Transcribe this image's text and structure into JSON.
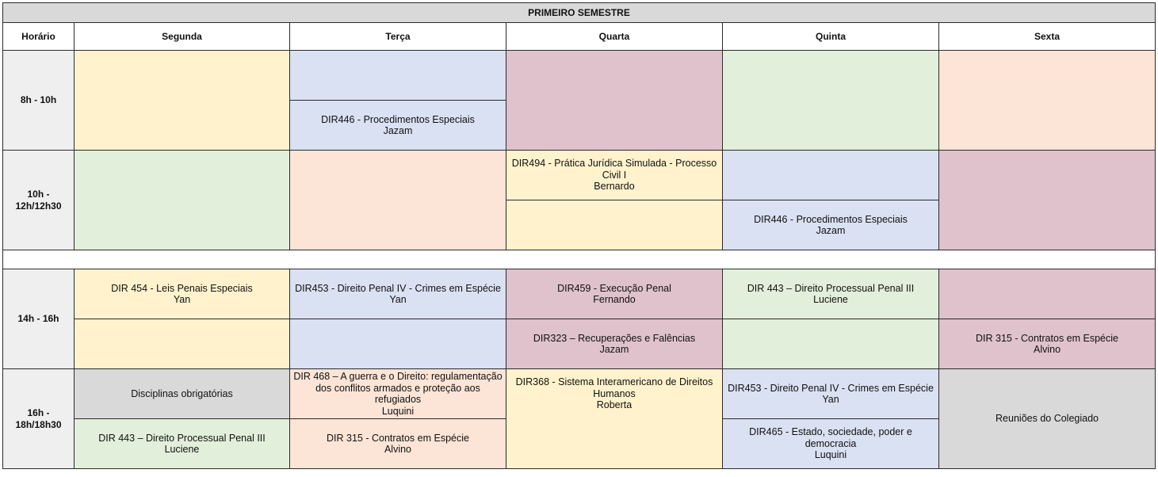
{
  "title": "PRIMEIRO SEMESTRE",
  "headers": [
    "Horário",
    "Segunda",
    "Terça",
    "Quarta",
    "Quinta",
    "Sexta"
  ],
  "times": [
    "8h - 10h",
    "10h -\n12h/12h30",
    "14h - 16h",
    "16h -\n18h/18h30"
  ],
  "cells": {
    "tue_8_b": [
      "DIR446 - Procedimentos Especiais",
      "Jazam"
    ],
    "wed_10": [
      "DIR494 - Prática Jurídica Simulada - Processo Civil I",
      "Bernardo"
    ],
    "thu_10_b": [
      "DIR446 - Procedimentos Especiais",
      "Jazam"
    ],
    "mon_14_a": [
      "DIR 454 - Leis Penais Especiais",
      "Yan"
    ],
    "tue_14_a": [
      "DIR453 - Direito Penal IV - Crimes em Espécie",
      "Yan"
    ],
    "wed_14_a": [
      "DIR459 - Execução Penal",
      "Fernando"
    ],
    "thu_14_a": [
      "DIR 443 – Direito Processual Penal III",
      "Luciene"
    ],
    "wed_14_b": [
      "DIR323 – Recuperações e Falências",
      "Jazam"
    ],
    "fri_14_b": [
      "DIR 315 - Contratos em Espécie",
      "Alvino"
    ],
    "mon_16_a": [
      "Disciplinas obrigatórias"
    ],
    "tue_16_a": [
      "DIR 468 – A guerra e o Direito: regulamentação dos conflitos armados e proteção aos refugiados",
      "Luquini"
    ],
    "wed_16": [
      "DIR368 - Sistema Interamericano de Direitos Humanos",
      "Roberta"
    ],
    "thu_16_a": [
      "DIR453 - Direito Penal IV - Crimes em Espécie",
      "Yan"
    ],
    "fri_16": [
      "Reuniões do Colegiado"
    ],
    "mon_16_b": [
      "DIR 443 – Direito Processual Penal III",
      "Luciene"
    ],
    "tue_16_b": [
      "DIR 315 - Contratos em Espécie",
      "Alvino"
    ],
    "thu_16_b": [
      "DIR465 - Estado, sociedade, poder e democracia",
      "Luquini"
    ]
  },
  "colors": {
    "yellow": "#fff2cc",
    "blue": "#d9e1f2",
    "pink": "#dfc2cb",
    "green": "#e2efda",
    "peach": "#fce4d6",
    "gray": "#d9d9d9"
  }
}
